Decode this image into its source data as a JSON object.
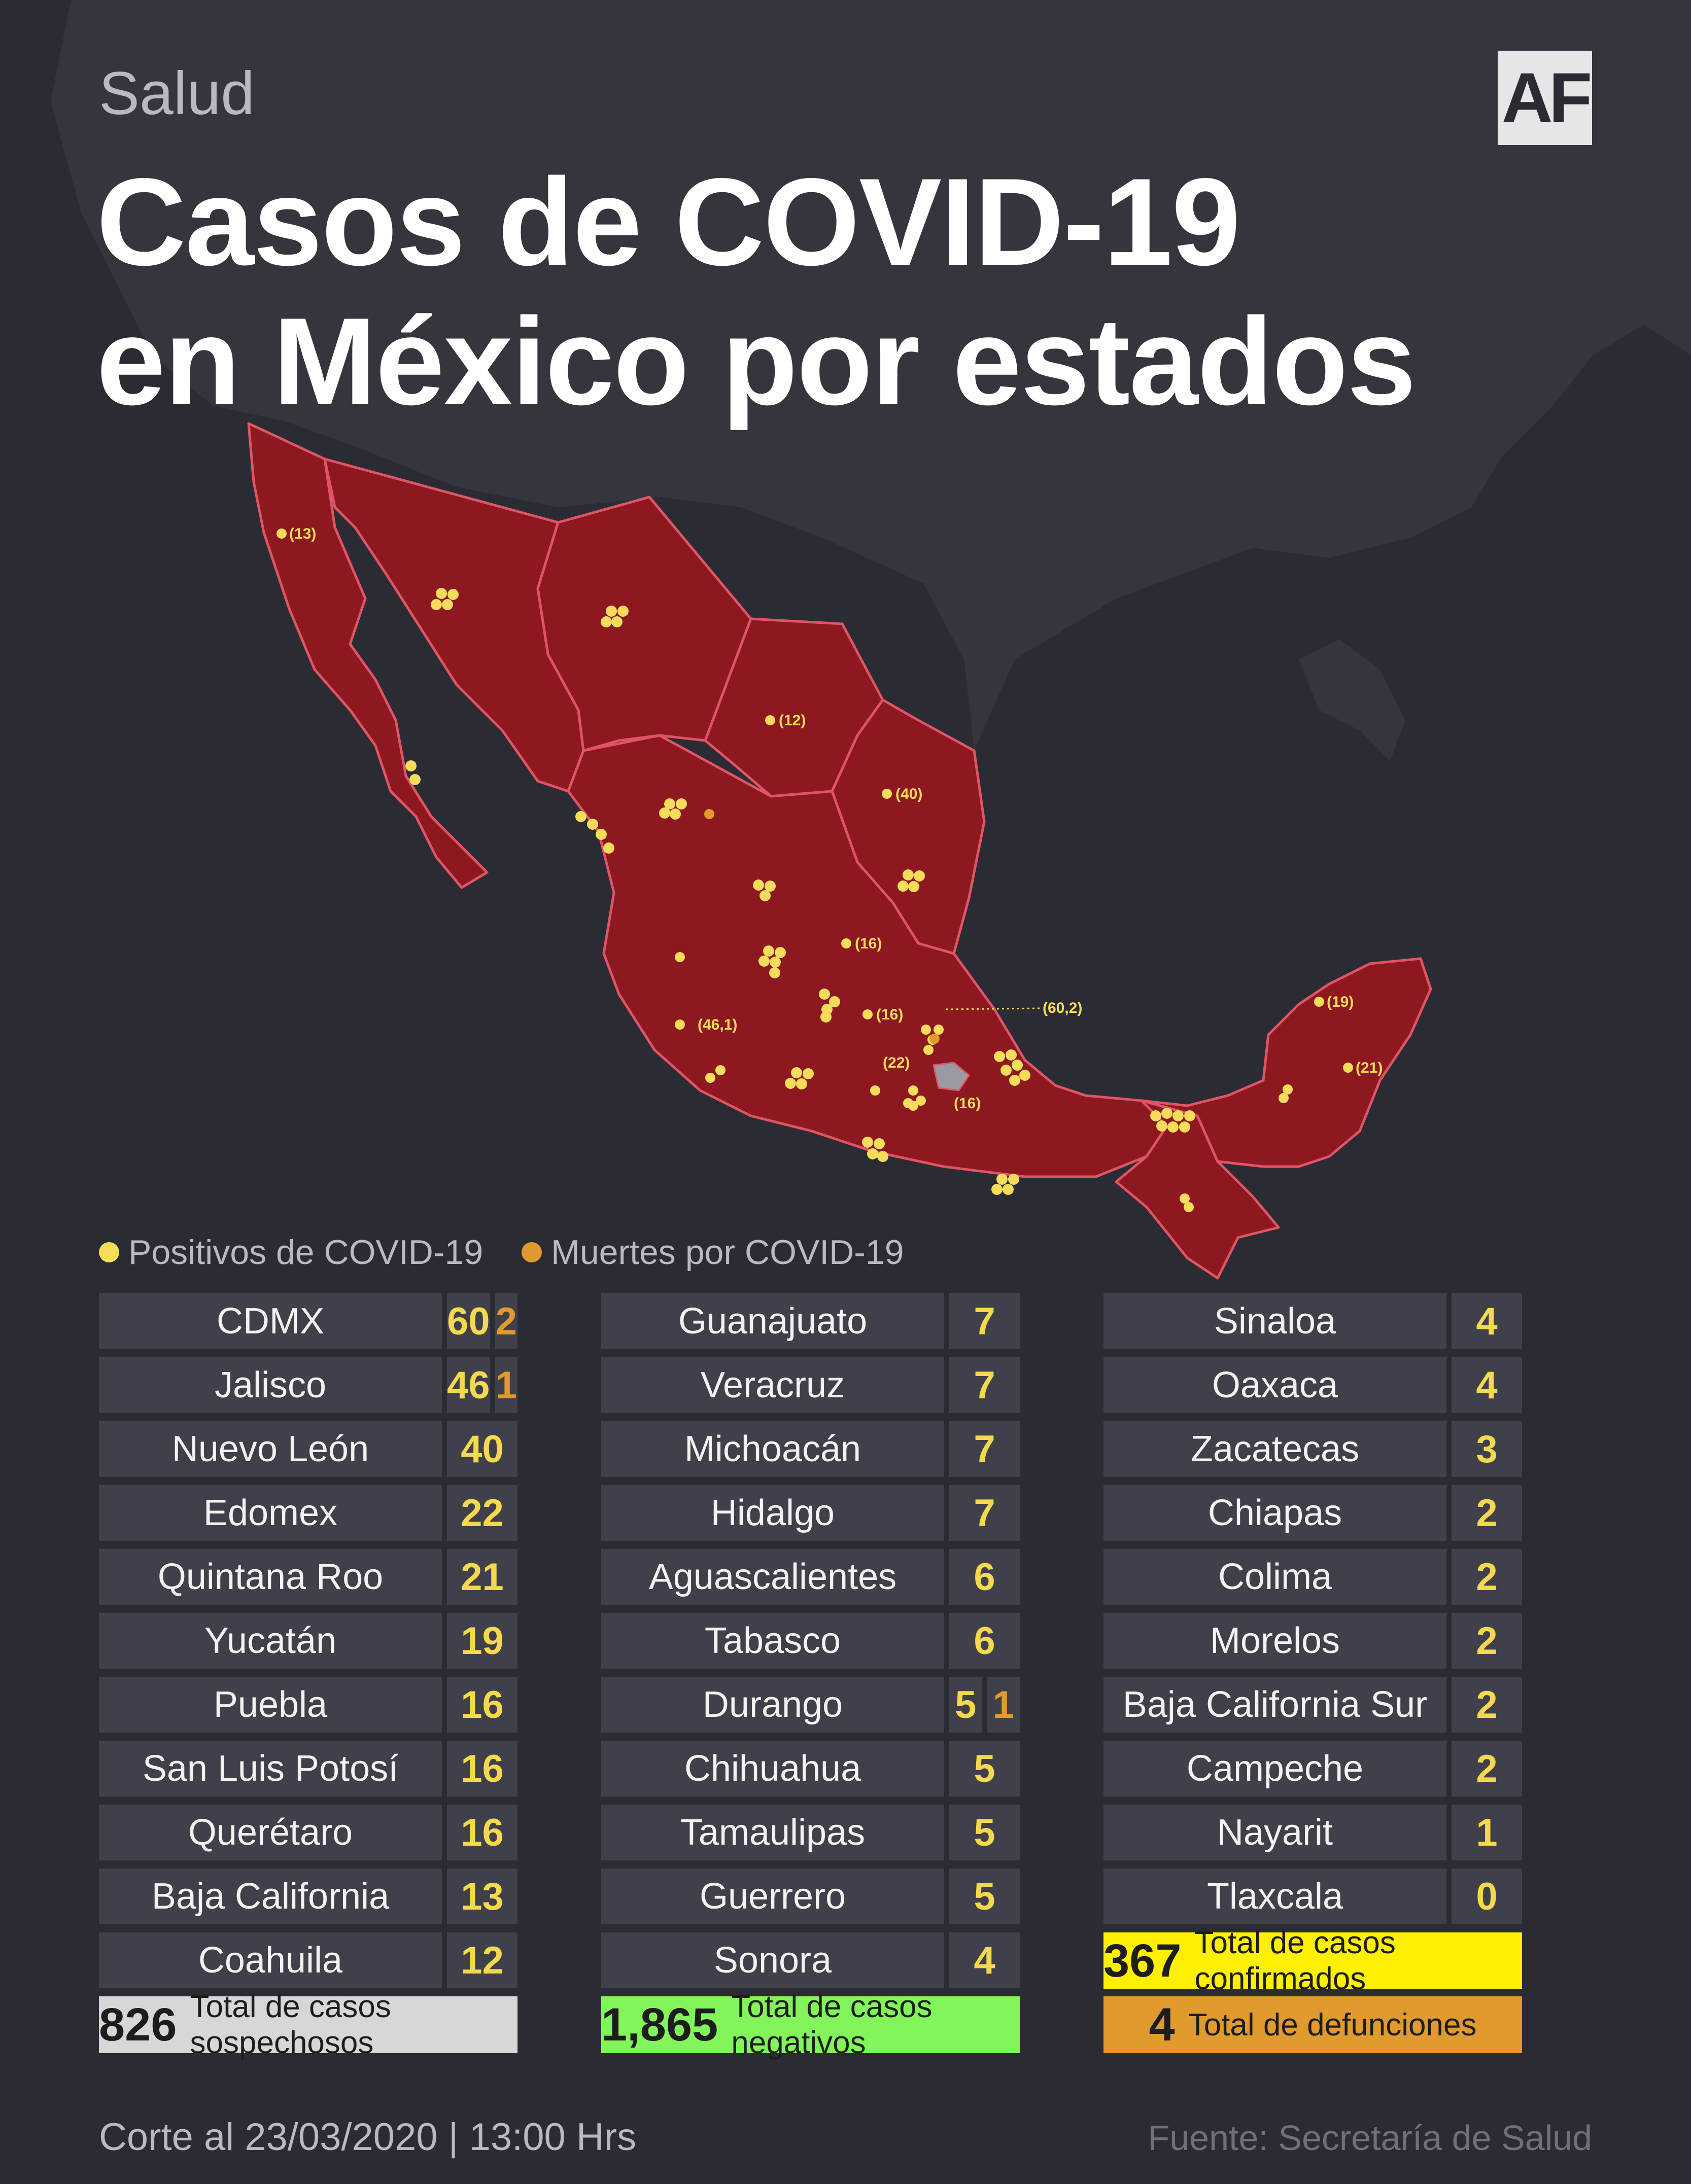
{
  "section": "Salud",
  "title_line1": "Casos de COVID-19",
  "title_line2": "en México por estados",
  "logo": "AF",
  "legend": {
    "positive_label": "Positivos de COVID-19",
    "death_label": "Muertes por COVID-19",
    "positive_color": "#f5dc5a",
    "death_color": "#e09a2e"
  },
  "map_labels": [
    "(13)",
    "(12)",
    "(40)",
    "(16)",
    "(16)",
    "(60,2)",
    "(46,1)",
    "(22)",
    "(16)",
    "(19)",
    "(21)"
  ],
  "columns": [
    [
      {
        "state": "CDMX",
        "positive": "60",
        "deaths": "2"
      },
      {
        "state": "Jalisco",
        "positive": "46",
        "deaths": "1"
      },
      {
        "state": "Nuevo León",
        "positive": "40"
      },
      {
        "state": "Edomex",
        "positive": "22"
      },
      {
        "state": "Quintana Roo",
        "positive": "21"
      },
      {
        "state": "Yucatán",
        "positive": "19"
      },
      {
        "state": "Puebla",
        "positive": "16"
      },
      {
        "state": "San Luis Potosí",
        "positive": "16"
      },
      {
        "state": "Querétaro",
        "positive": "16"
      },
      {
        "state": "Baja California",
        "positive": "13"
      },
      {
        "state": "Coahuila",
        "positive": "12"
      }
    ],
    [
      {
        "state": "Guanajuato",
        "positive": "7"
      },
      {
        "state": "Veracruz",
        "positive": "7"
      },
      {
        "state": "Michoacán",
        "positive": "7"
      },
      {
        "state": "Hidalgo",
        "positive": "7"
      },
      {
        "state": "Aguascalientes",
        "positive": "6"
      },
      {
        "state": "Tabasco",
        "positive": "6"
      },
      {
        "state": "Durango",
        "positive": "5",
        "deaths": "1"
      },
      {
        "state": "Chihuahua",
        "positive": "5"
      },
      {
        "state": "Tamaulipas",
        "positive": "5"
      },
      {
        "state": "Guerrero",
        "positive": "5"
      },
      {
        "state": "Sonora",
        "positive": "4"
      }
    ],
    [
      {
        "state": "Sinaloa",
        "positive": "4"
      },
      {
        "state": "Oaxaca",
        "positive": "4"
      },
      {
        "state": "Zacatecas",
        "positive": "3"
      },
      {
        "state": "Chiapas",
        "positive": "2"
      },
      {
        "state": "Colima",
        "positive": "2"
      },
      {
        "state": "Morelos",
        "positive": "2"
      },
      {
        "state": "Baja California Sur",
        "positive": "2"
      },
      {
        "state": "Campeche",
        "positive": "2"
      },
      {
        "state": "Nayarit",
        "positive": "1"
      },
      {
        "state": "Tlaxcala",
        "positive": "0"
      }
    ]
  ],
  "totals": {
    "confirmed": {
      "value": "367",
      "label": "Total de casos confirmados",
      "color": "#fff000"
    },
    "suspected": {
      "value": "826",
      "label": "Total de casos sospechosos",
      "color": "#d7d7d9"
    },
    "negative": {
      "value": "1,865",
      "label": "Total de casos negativos",
      "color": "#82f55a"
    },
    "deaths": {
      "value": "4",
      "label": "Total de defunciones",
      "color": "#e09a2e"
    }
  },
  "footer": {
    "cutoff": "Corte al 23/03/2020 | 13:00 Hrs",
    "source": "Fuente: Secretaría de Salud"
  }
}
